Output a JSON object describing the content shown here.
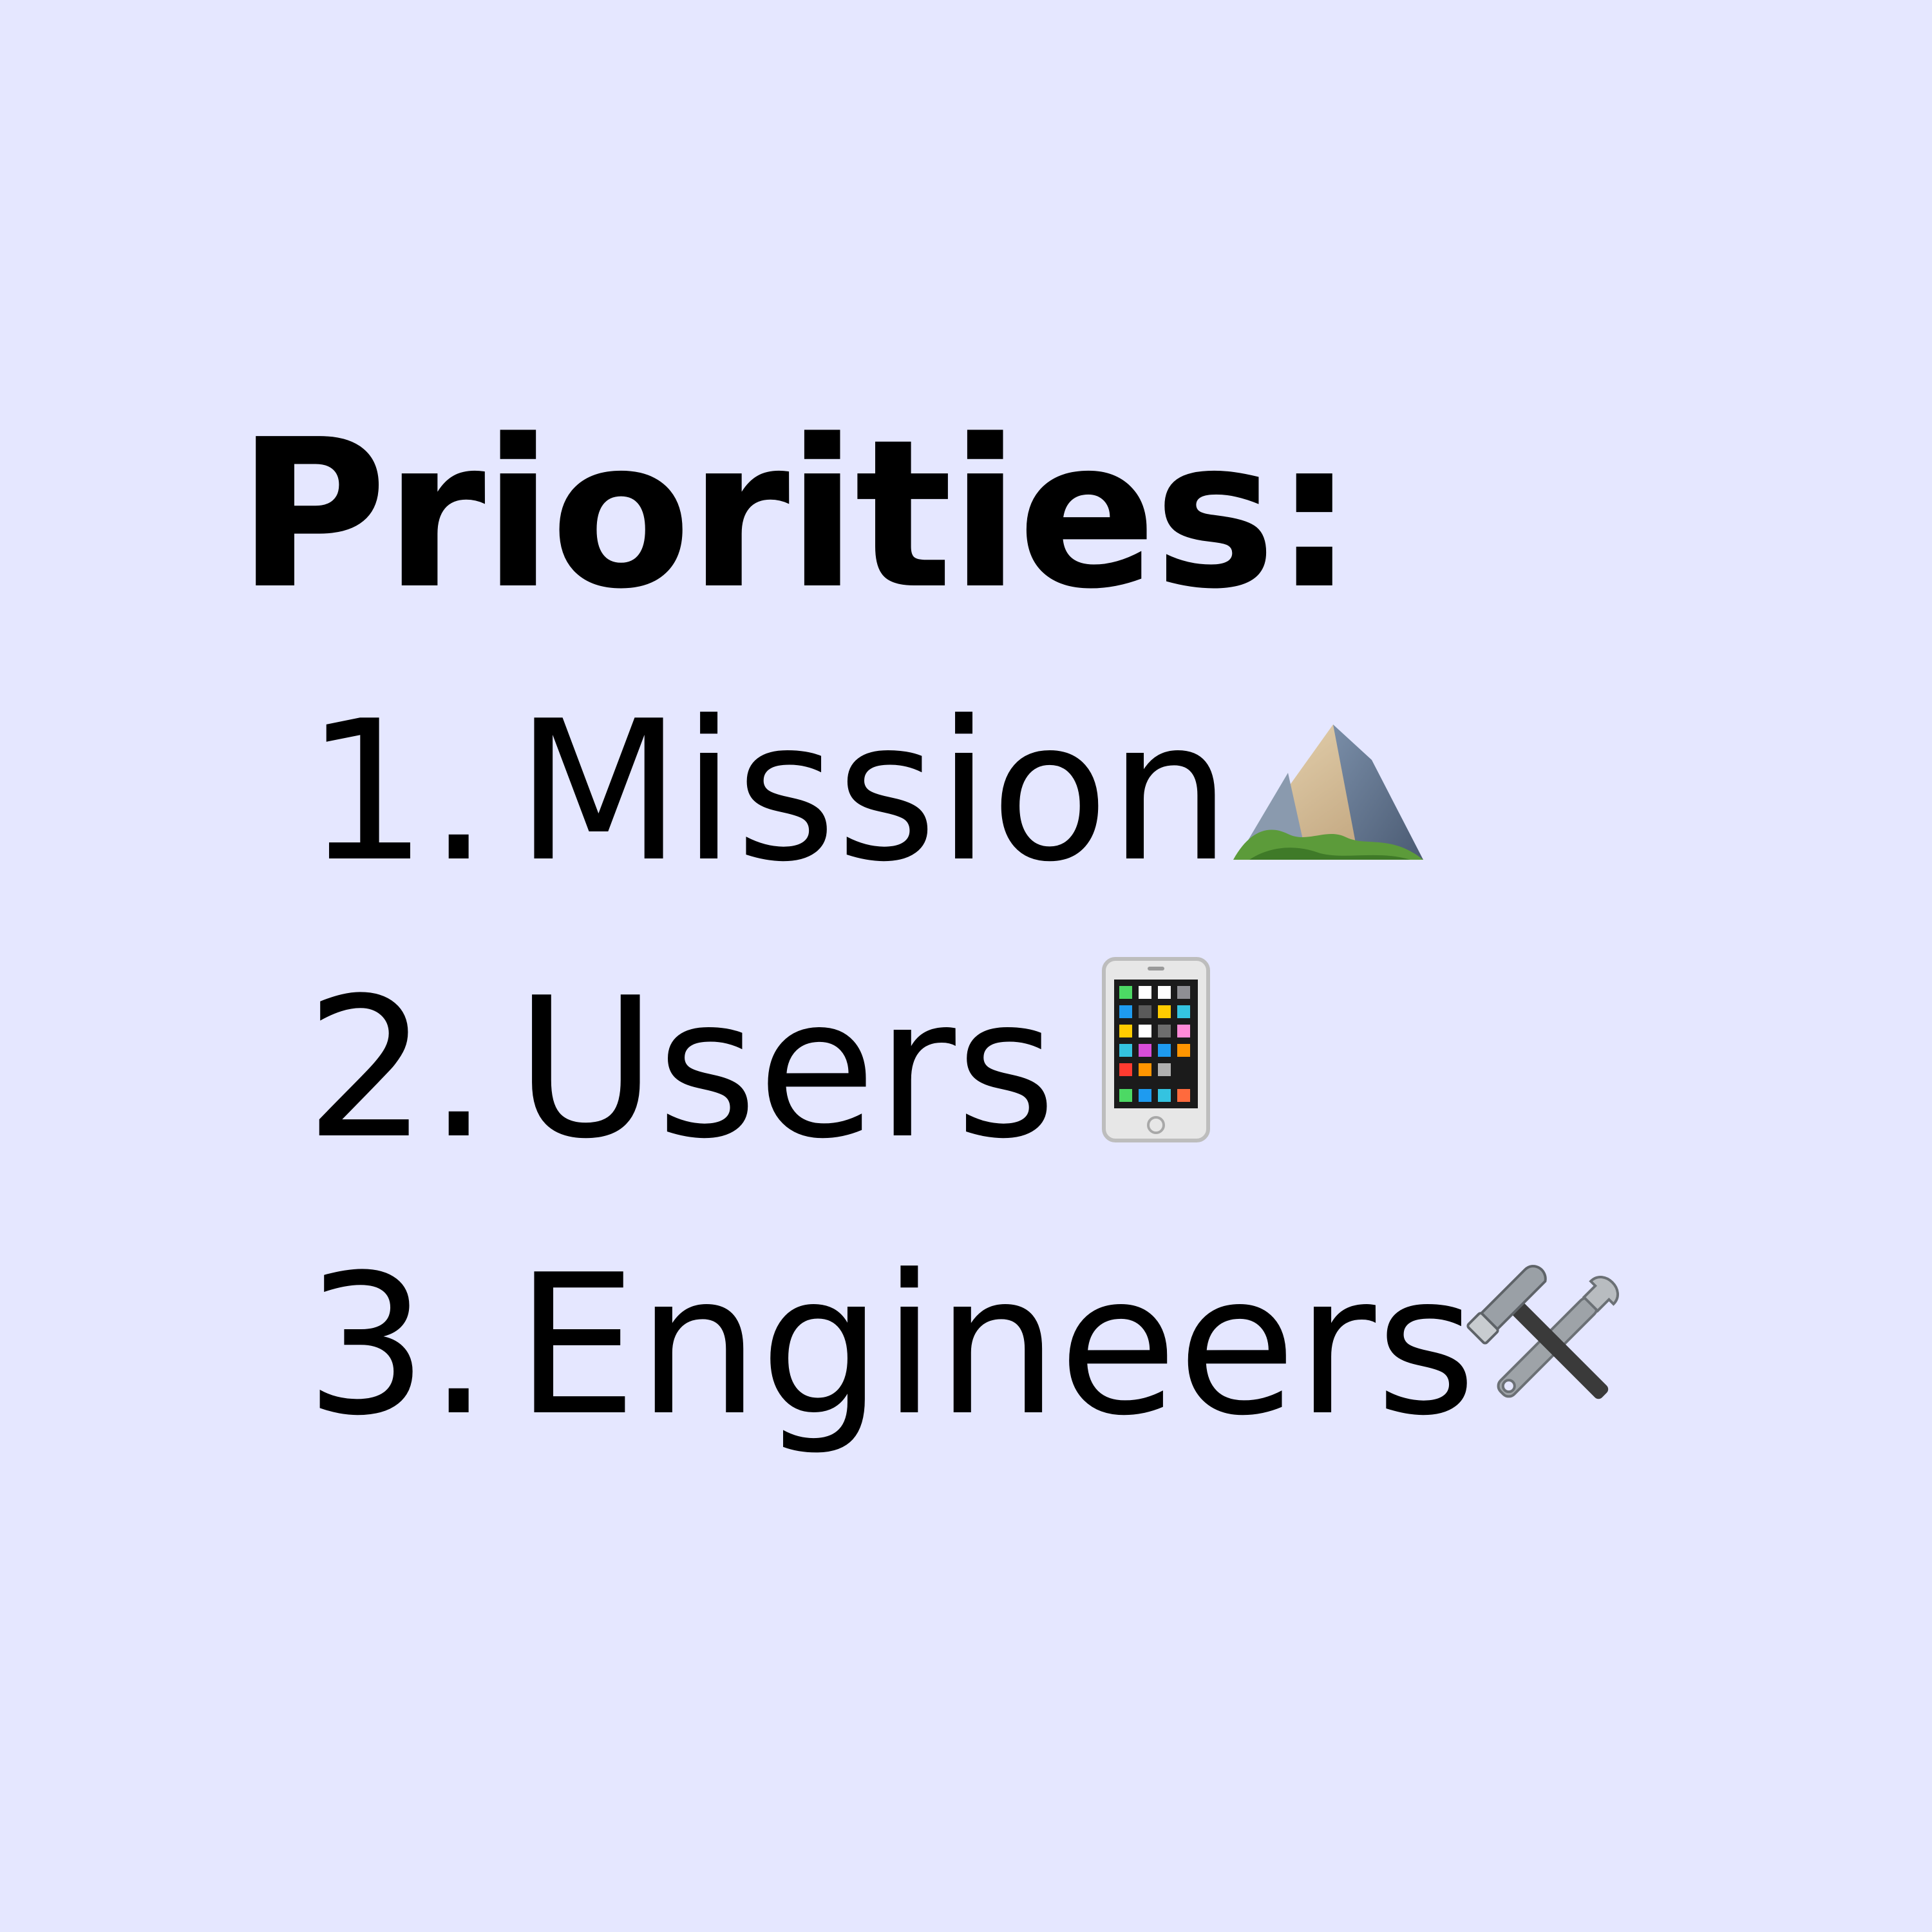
{
  "heading": "Priorities:",
  "items": [
    {
      "number": "1.",
      "label": "Mission",
      "icon": "mountain-icon"
    },
    {
      "number": "2.",
      "label": "Users",
      "icon": "mobile-phone-icon"
    },
    {
      "number": "3.",
      "label": "Engineers",
      "icon": "hammer-and-wrench-icon"
    }
  ],
  "colors": {
    "background": "#e5e7ff",
    "text": "#000000"
  }
}
